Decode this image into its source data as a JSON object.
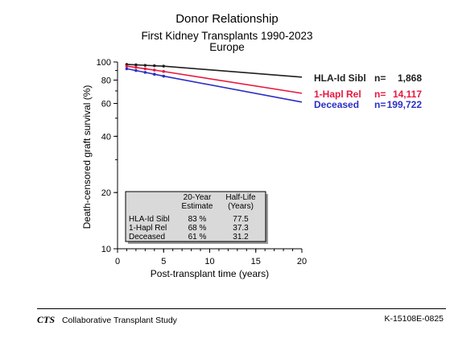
{
  "title": "Donor Relationship",
  "subtitle1": "First Kidney Transplants 1990-2023",
  "subtitle2": "Europe",
  "chart_data": {
    "type": "line",
    "xlabel": "Post-transplant time (years)",
    "ylabel": "Death-censored graft survival (%)",
    "xlim": [
      0,
      20
    ],
    "ylim": [
      10,
      100
    ],
    "yscale": "log",
    "xticks": [
      0,
      5,
      10,
      15,
      20
    ],
    "yticks": [
      10,
      20,
      40,
      60,
      80,
      100
    ],
    "series": [
      {
        "name": "HLA-Id Sibl",
        "n_label": "n=",
        "n_value": "1,868",
        "color": "#1f1f1f",
        "x": [
          1,
          2,
          3,
          4,
          5,
          20
        ],
        "y": [
          97,
          96.5,
          96,
          95.5,
          95,
          83
        ]
      },
      {
        "name": "1-Hapl Rel",
        "n_label": "n=",
        "n_value": "14,117",
        "color": "#e8173e",
        "x": [
          1,
          2,
          3,
          4,
          5,
          20
        ],
        "y": [
          95,
          93.5,
          92,
          90.5,
          89,
          68
        ]
      },
      {
        "name": "Deceased",
        "n_label": "n=",
        "n_value": "199,722",
        "color": "#2b2fc4",
        "x": [
          1,
          2,
          3,
          4,
          5,
          20
        ],
        "y": [
          92,
          90,
          88,
          86,
          84,
          61
        ]
      }
    ],
    "table": {
      "col1_header": [
        "20-Year",
        "Estimate"
      ],
      "col2_header": [
        "Half-Life",
        "(Years)"
      ],
      "rows": [
        {
          "label": "HLA-Id Sibl",
          "estimate": "83 %",
          "half_life": "77.5"
        },
        {
          "label": "1-Hapl Rel",
          "estimate": "68 %",
          "half_life": "37.3"
        },
        {
          "label": "Deceased",
          "estimate": "61 %",
          "half_life": "31.2"
        }
      ]
    }
  },
  "footer": {
    "logo": "CTS",
    "org": "Collaborative Transplant Study",
    "code": "K-15108E-0825"
  }
}
